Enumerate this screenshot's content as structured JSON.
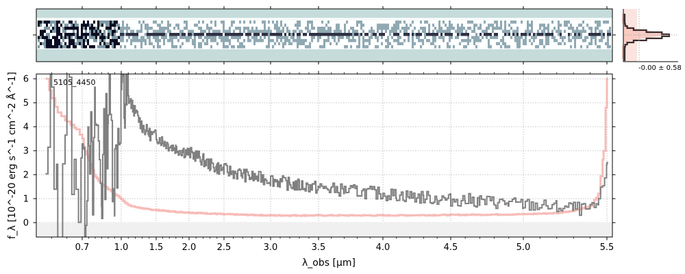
{
  "chart_data": [
    {
      "type": "heatmap",
      "panel": "2d-spectrum",
      "description_values": "2D spectral image, bright central trace along the slit",
      "colors": {
        "background": "#c5dcdb",
        "trace": "#0b0c22",
        "mid": "#7e9aa6",
        "light": "#ffffff"
      }
    },
    {
      "type": "line",
      "panel": "1d-spectrum",
      "object_label": "5105_4450",
      "xlabel": "λ_obs [μm]",
      "ylabel": "f_λ [10^-20 erg s^-1 cm^-2 Å^-1]",
      "xlim": [
        0.55,
        5.53
      ],
      "ylim": [
        -0.6,
        6.2
      ],
      "x_scale": "resolution-warped (prism)",
      "xticks": [
        "0.7",
        "1.0",
        "1.5",
        "2.0",
        "2.5",
        "3.0",
        "3.5",
        "4.0",
        "4.5",
        "5.0",
        "5.5"
      ],
      "yticks": [
        "0",
        "1",
        "2",
        "3",
        "4",
        "5",
        "6"
      ],
      "grid": true,
      "series": [
        {
          "role": "flux",
          "color": "#808080",
          "x": [
            0.58,
            0.6,
            0.62,
            0.65,
            0.68,
            0.7,
            0.72,
            0.75,
            0.78,
            0.8,
            0.85,
            0.9,
            0.95,
            1.0,
            1.05,
            1.1,
            1.2,
            1.3,
            1.4,
            1.5,
            1.6,
            1.7,
            1.8,
            1.9,
            2.0,
            2.1,
            2.2,
            2.3,
            2.4,
            2.5,
            2.6,
            2.7,
            2.8,
            2.9,
            3.0,
            3.1,
            3.2,
            3.3,
            3.4,
            3.5,
            3.6,
            3.7,
            3.8,
            3.9,
            4.0,
            4.1,
            4.2,
            4.3,
            4.4,
            4.5,
            4.6,
            4.7,
            4.8,
            4.9,
            5.0,
            5.1,
            5.2,
            5.3,
            5.4,
            5.45,
            5.5
          ],
          "y": [
            1.0,
            5.5,
            -0.5,
            5.8,
            0.5,
            4.2,
            0.2,
            5.0,
            0.8,
            4.5,
            1.5,
            5.0,
            2.0,
            5.8,
            4.8,
            5.2,
            4.6,
            4.0,
            3.7,
            3.6,
            3.4,
            3.2,
            3.1,
            3.0,
            2.9,
            2.8,
            2.6,
            2.4,
            2.3,
            2.2,
            2.1,
            2.0,
            1.9,
            1.85,
            1.8,
            1.7,
            1.6,
            1.55,
            1.5,
            1.45,
            1.4,
            1.35,
            1.3,
            1.25,
            1.2,
            1.15,
            1.1,
            1.05,
            1.0,
            0.95,
            0.95,
            0.9,
            0.85,
            0.8,
            0.75,
            0.7,
            0.65,
            0.6,
            0.5,
            0.8,
            2.5
          ]
        },
        {
          "role": "uncertainty",
          "color": "#f4a6a0",
          "x": [
            0.58,
            0.6,
            0.62,
            0.65,
            0.68,
            0.7,
            0.72,
            0.75,
            0.78,
            0.8,
            0.85,
            0.9,
            0.95,
            1.0,
            1.05,
            1.1,
            1.2,
            1.4,
            1.6,
            1.8,
            2.0,
            2.5,
            3.0,
            3.5,
            4.0,
            4.5,
            5.0,
            5.2,
            5.3,
            5.4,
            5.45,
            5.48,
            5.5
          ],
          "y": [
            6.0,
            5.2,
            4.6,
            4.2,
            3.9,
            3.5,
            3.0,
            2.6,
            2.2,
            1.9,
            1.6,
            1.4,
            1.2,
            1.0,
            0.85,
            0.75,
            0.65,
            0.55,
            0.5,
            0.45,
            0.42,
            0.35,
            0.3,
            0.3,
            0.3,
            0.32,
            0.35,
            0.4,
            0.5,
            0.7,
            1.2,
            3.0,
            6.0
          ]
        }
      ]
    },
    {
      "type": "line",
      "panel": "spatial-profile",
      "annotation": "-0.00 ± 0.58",
      "colors": {
        "profile": "#3a2a2a",
        "fill": "#f7c6bd"
      }
    }
  ]
}
